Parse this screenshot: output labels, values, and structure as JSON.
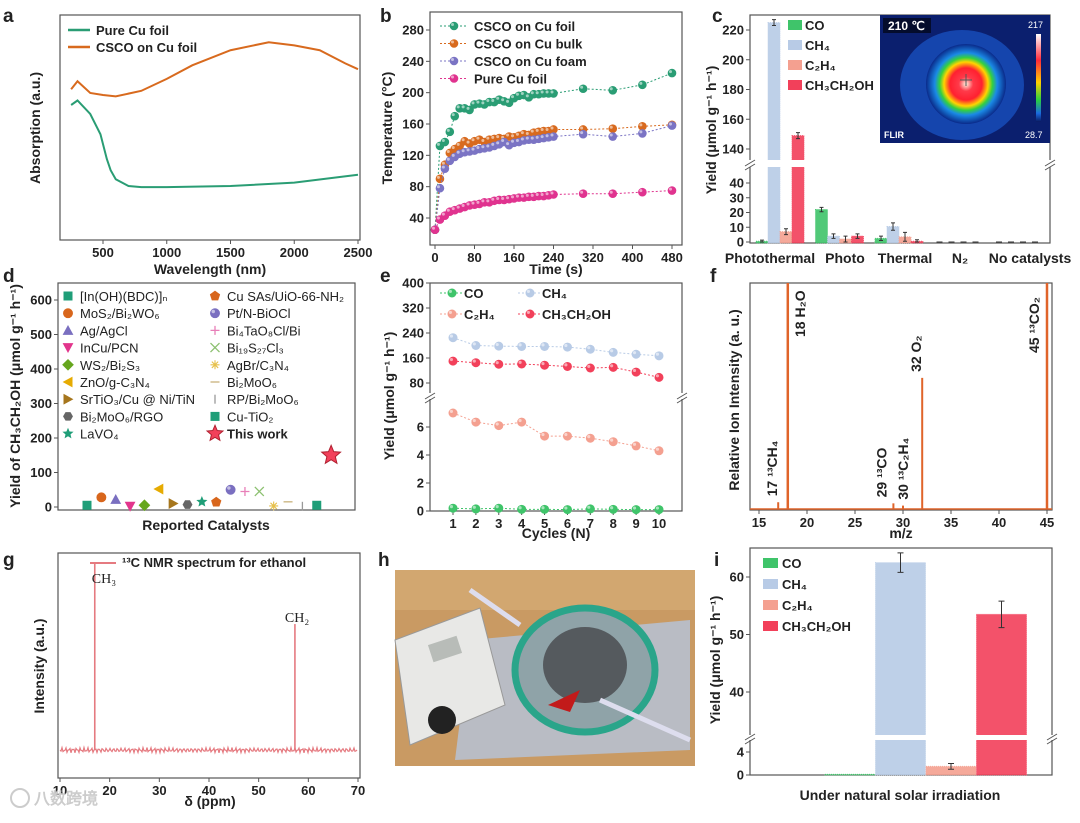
{
  "chart_data": [
    {
      "panel": "a",
      "type": "line",
      "xlabel": "Wavelength (nm)",
      "ylabel": "Absorption (a.u.)",
      "xlim": [
        165,
        2500
      ],
      "ylim": [
        0,
        1
      ],
      "xticks": [
        "500",
        "1000",
        "1500",
        "2000",
        "2500"
      ],
      "series": [
        {
          "name": "Pure Cu foil",
          "color": "#2a9d74",
          "x": [
            250,
            300,
            400,
            480,
            530,
            560,
            600,
            700,
            800,
            1000,
            1500,
            2000,
            2500
          ],
          "y": [
            0.6,
            0.62,
            0.56,
            0.47,
            0.36,
            0.31,
            0.27,
            0.24,
            0.235,
            0.235,
            0.24,
            0.255,
            0.29
          ]
        },
        {
          "name": "CSCO on Cu foil",
          "color": "#d86a1e",
          "x": [
            250,
            300,
            400,
            500,
            600,
            800,
            1000,
            1200,
            1500,
            1800,
            2000,
            2200,
            2400,
            2500
          ],
          "y": [
            0.67,
            0.71,
            0.66,
            0.65,
            0.64,
            0.66,
            0.71,
            0.77,
            0.84,
            0.88,
            0.87,
            0.85,
            0.79,
            0.76
          ]
        }
      ]
    },
    {
      "panel": "b",
      "type": "line",
      "xlabel": "Time (s)",
      "ylabel": "Temperature (°C)",
      "xlim": [
        -5,
        500
      ],
      "ylim": [
        5,
        303
      ],
      "xticks": [
        "0",
        "80",
        "160",
        "240",
        "320",
        "400",
        "480"
      ],
      "yticks": [
        "40",
        "80",
        "120",
        "160",
        "200",
        "240",
        "280"
      ],
      "x": [
        0,
        10,
        20,
        30,
        40,
        50,
        60,
        70,
        80,
        90,
        100,
        110,
        120,
        130,
        140,
        150,
        160,
        170,
        180,
        190,
        200,
        210,
        220,
        230,
        240,
        300,
        360,
        420,
        480
      ],
      "series": [
        {
          "name": "CSCO on Cu foil",
          "color": "#2a9d74",
          "values": [
            25,
            132,
            137,
            150,
            170,
            180,
            180,
            178,
            185,
            186,
            185,
            188,
            188,
            191,
            189,
            187,
            193,
            196,
            197,
            194,
            198,
            198,
            199,
            199,
            199,
            205,
            203,
            210,
            225
          ]
        },
        {
          "name": "CSCO on Cu bulk",
          "color": "#d86a1e",
          "values": [
            25,
            90,
            108,
            123,
            128,
            132,
            138,
            135,
            138,
            140,
            137,
            140,
            141,
            142,
            141,
            144,
            143,
            145,
            147,
            146,
            149,
            150,
            151,
            151,
            153,
            153,
            154,
            157,
            159
          ]
        },
        {
          "name": "CSCO on Cu foam",
          "color": "#7b74c4",
          "values": [
            25,
            78,
            103,
            113,
            118,
            122,
            124,
            125,
            126,
            128,
            129,
            130,
            132,
            134,
            137,
            133,
            136,
            137,
            139,
            140,
            140,
            141,
            142,
            143,
            144,
            147,
            144,
            148,
            158
          ]
        },
        {
          "name": "Pure Cu foil",
          "color": "#e0338f",
          "values": [
            25,
            38,
            43,
            48,
            50,
            52,
            54,
            56,
            57,
            58,
            60,
            60,
            62,
            63,
            63,
            64,
            65,
            66,
            66,
            67,
            67,
            68,
            68,
            69,
            70,
            71,
            71,
            73,
            75
          ]
        }
      ]
    },
    {
      "panel": "c",
      "type": "bar",
      "ylabel": "Yield (μmol g⁻¹ h⁻¹)",
      "categories": [
        "Photothermal",
        "Photo",
        "Thermal",
        "N₂",
        "No catalysts"
      ],
      "ylim_lower": [
        0,
        48
      ],
      "ylim_upper": [
        130,
        230
      ],
      "yticks_lower": [
        "0",
        "10",
        "20",
        "30",
        "40"
      ],
      "yticks_upper": [
        "140",
        "160",
        "180",
        "200",
        "220"
      ],
      "series": [
        {
          "name": "CO",
          "color": "#3fc46a",
          "values": [
            0.5,
            22,
            2.5,
            0,
            0
          ],
          "errors": [
            0.8,
            1.5,
            1.5,
            0,
            0
          ]
        },
        {
          "name": "CH₄",
          "color": "#b8cbe6",
          "values": [
            225,
            4,
            10.5,
            0,
            0
          ],
          "errors": [
            2,
            1.5,
            2.5,
            0,
            0
          ]
        },
        {
          "name": "C₂H₄",
          "color": "#f4a090",
          "values": [
            7,
            2,
            3.5,
            0,
            0
          ],
          "errors": [
            2,
            2,
            3,
            0,
            0
          ]
        },
        {
          "name": "CH₃CH₂OH",
          "color": "#f2405a",
          "values": [
            149,
            4,
            0.5,
            0,
            0
          ],
          "errors": [
            2,
            1.5,
            1,
            0,
            0
          ]
        }
      ],
      "inset": {
        "temperature": "210 ℃",
        "scale_max": "217",
        "scale_min": "28.7",
        "brand": "FLIR"
      }
    },
    {
      "panel": "d",
      "type": "scatter",
      "xlabel": "Reported Catalysts",
      "ylabel": "Yield of CH₃CH₂OH (μmol g⁻¹ h⁻¹)",
      "ylim": [
        -10,
        630
      ],
      "yticks": [
        "0",
        "100",
        "200",
        "300",
        "400",
        "500",
        "600"
      ],
      "points": [
        {
          "name": "[In(OH)(BDC)]ₙ",
          "value": 5,
          "marker": "square",
          "color": "#1f9e78"
        },
        {
          "name": "MoS₂/Bi₂WO₆",
          "value": 28,
          "marker": "circle",
          "color": "#d8661c"
        },
        {
          "name": "Ag/AgCl",
          "value": 22,
          "marker": "triangle-up",
          "color": "#7a6fc0"
        },
        {
          "name": "InCu/PCN",
          "value": 2,
          "marker": "triangle-down",
          "color": "#e2358c"
        },
        {
          "name": "WS₂/Bi₂S₃",
          "value": 5,
          "marker": "diamond",
          "color": "#66a61e"
        },
        {
          "name": "ZnO/g-C₃N₄",
          "value": 52,
          "marker": "triangle-left",
          "color": "#e6ab02"
        },
        {
          "name": "SrTiO₃/Cu @ Ni/TiN",
          "value": 10,
          "marker": "triangle-right",
          "color": "#a6761d"
        },
        {
          "name": "Bi₂MoO₆/RGO",
          "value": 7,
          "marker": "hexagon",
          "color": "#666666"
        },
        {
          "name": "LaVO₄",
          "value": 15,
          "marker": "star",
          "color": "#1f9e78"
        },
        {
          "name": "Cu SAs/UiO-66-NH₂",
          "value": 14,
          "marker": "pentagon",
          "color": "#d8661c"
        },
        {
          "name": "Pt/N-BiOCl",
          "value": 50,
          "marker": "sphere",
          "color": "#7a6fc0"
        },
        {
          "name": "Bi₄TaO₈Cl/Bi",
          "value": 45,
          "marker": "plus",
          "color": "#e87fb8"
        },
        {
          "name": "Bi₁₉S₂₇Cl₃",
          "value": 45,
          "marker": "x",
          "color": "#8cc070"
        },
        {
          "name": "AgBr/C₃N₄",
          "value": 3,
          "marker": "asterisk",
          "color": "#e6c04a"
        },
        {
          "name": "Bi₂MoO₆",
          "value": 15,
          "marker": "hline",
          "color": "#c9b27c"
        },
        {
          "name": "RP/Bi₂MoO₆",
          "value": 2,
          "marker": "vline",
          "color": "#999999"
        },
        {
          "name": "Cu-TiO₂",
          "value": 5,
          "marker": "square",
          "color": "#1f9e78"
        },
        {
          "name": "This work",
          "value": 150,
          "marker": "big-star",
          "color": "#f2405a"
        }
      ]
    },
    {
      "panel": "e",
      "type": "line",
      "xlabel": "Cycles (N)",
      "ylabel": "Yield (μmol g⁻¹ h⁻¹)",
      "x": [
        1,
        2,
        3,
        4,
        5,
        6,
        7,
        8,
        9,
        10
      ],
      "xticks": [
        "1",
        "2",
        "3",
        "4",
        "5",
        "6",
        "7",
        "8",
        "9",
        "10"
      ],
      "ylim_lower": [
        0,
        8
      ],
      "ylim_upper": [
        38,
        400
      ],
      "yticks_lower": [
        "0",
        "2",
        "4",
        "6"
      ],
      "yticks_upper": [
        "80",
        "160",
        "240",
        "320",
        "400"
      ],
      "series": [
        {
          "name": "CO",
          "color": "#3fc46a",
          "values": [
            0.2,
            0.15,
            0.2,
            0.12,
            0.12,
            0.1,
            0.15,
            0.12,
            0.1,
            0.1
          ]
        },
        {
          "name": "CH₄",
          "color": "#b8cbe6",
          "values": [
            225,
            200,
            198,
            197,
            197,
            195,
            188,
            178,
            172,
            167
          ]
        },
        {
          "name": "C₂H₄",
          "color": "#f4a090",
          "values": [
            7.0,
            6.35,
            6.1,
            6.35,
            5.35,
            5.35,
            5.2,
            4.95,
            4.65,
            4.3
          ]
        },
        {
          "name": "CH₃CH₂OH",
          "color": "#f2405a",
          "values": [
            150,
            145,
            140,
            141,
            137,
            133,
            128,
            130,
            115,
            98
          ]
        }
      ]
    },
    {
      "panel": "f",
      "type": "line",
      "xlabel": "m/z",
      "ylabel": "Relative Ion Intensity (a. u.)",
      "xlim": [
        14.5,
        45.3
      ],
      "xticks": [
        "15",
        "20",
        "25",
        "30",
        "35",
        "40",
        "45"
      ],
      "color": "#e0642a",
      "peaks": [
        {
          "mz": 17,
          "intensity": 0.03,
          "label": "17 ¹³CH₄"
        },
        {
          "mz": 18,
          "intensity": 1.0,
          "label": "18 H₂O"
        },
        {
          "mz": 29,
          "intensity": 0.025,
          "label": "29 ¹³CO"
        },
        {
          "mz": 30,
          "intensity": 0.015,
          "label": "30 ¹³C₂H₄"
        },
        {
          "mz": 32,
          "intensity": 0.58,
          "label": "32 O₂"
        },
        {
          "mz": 45,
          "intensity": 1.0,
          "label": "45 ¹³CO₂"
        }
      ]
    },
    {
      "panel": "g",
      "type": "line",
      "title": "¹³C NMR spectrum for ethanol",
      "xlabel": "δ (ppm)",
      "ylabel": "Intensity (a.u.)",
      "xlim": [
        10,
        70
      ],
      "xticks": [
        "10",
        "20",
        "30",
        "40",
        "50",
        "60",
        "70"
      ],
      "color": "#e57a80",
      "baseline": 0.05,
      "peaks": [
        {
          "ppm": 17.0,
          "intensity": 1.0,
          "label": "CH₃"
        },
        {
          "ppm": 57.3,
          "intensity": 0.69,
          "label": "CH₂"
        }
      ]
    },
    {
      "panel": "i",
      "type": "bar",
      "xlabel": "Under natural solar irradiation",
      "ylabel": "Yield (μmol g⁻¹ h⁻¹)",
      "ylim_lower": [
        0,
        5.5
      ],
      "ylim_upper": [
        32.2,
        65
      ],
      "yticks_lower": [
        "0",
        "4"
      ],
      "yticks_upper": [
        "40",
        "50",
        "60"
      ],
      "series": [
        {
          "name": "CO",
          "color": "#3fc46a",
          "value": 0.1,
          "error": 0
        },
        {
          "name": "CH₄",
          "color": "#b8cbe6",
          "value": 62.5,
          "error": 1.7
        },
        {
          "name": "C₂H₄",
          "color": "#f4a090",
          "value": 1.5,
          "error": 0.5
        },
        {
          "name": "CH₃CH₂OH",
          "color": "#f2405a",
          "value": 53.5,
          "error": 2.3
        }
      ]
    }
  ],
  "panel_labels": [
    "a",
    "b",
    "c",
    "d",
    "e",
    "f",
    "g",
    "h",
    "i"
  ],
  "watermark": "八数跨境"
}
